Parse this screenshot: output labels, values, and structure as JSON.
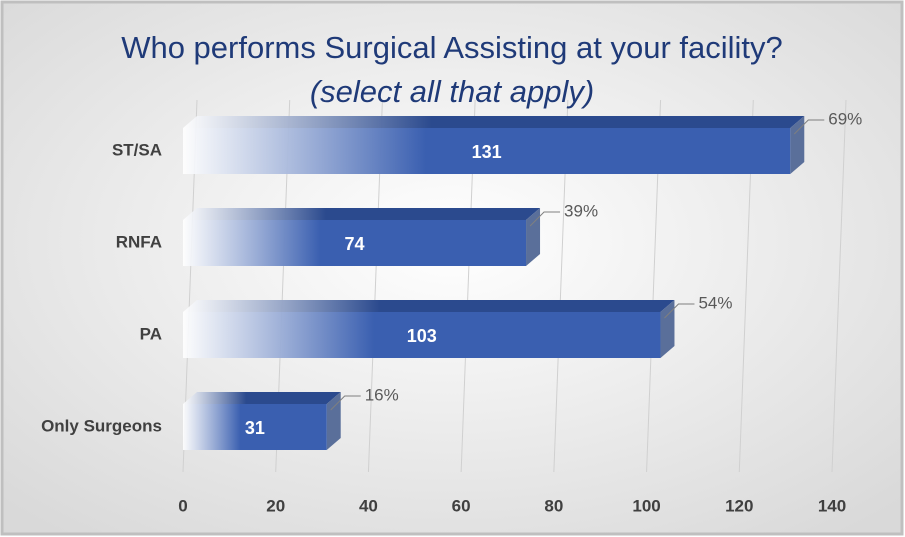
{
  "chart_data": {
    "type": "bar",
    "orientation": "horizontal",
    "title": "Who performs Surgical Assisting at your facility?",
    "subtitle": "(select all that apply)",
    "categories": [
      "ST/SA",
      "RNFA",
      "PA",
      "Only Surgeons"
    ],
    "values": [
      131,
      74,
      103,
      31
    ],
    "percent_labels": [
      "69%",
      "39%",
      "54%",
      "16%"
    ],
    "color": "#3a5fb0",
    "xlim": [
      0,
      140
    ],
    "xticks": [
      0,
      20,
      40,
      60,
      80,
      100,
      120,
      140
    ],
    "grid": true
  }
}
